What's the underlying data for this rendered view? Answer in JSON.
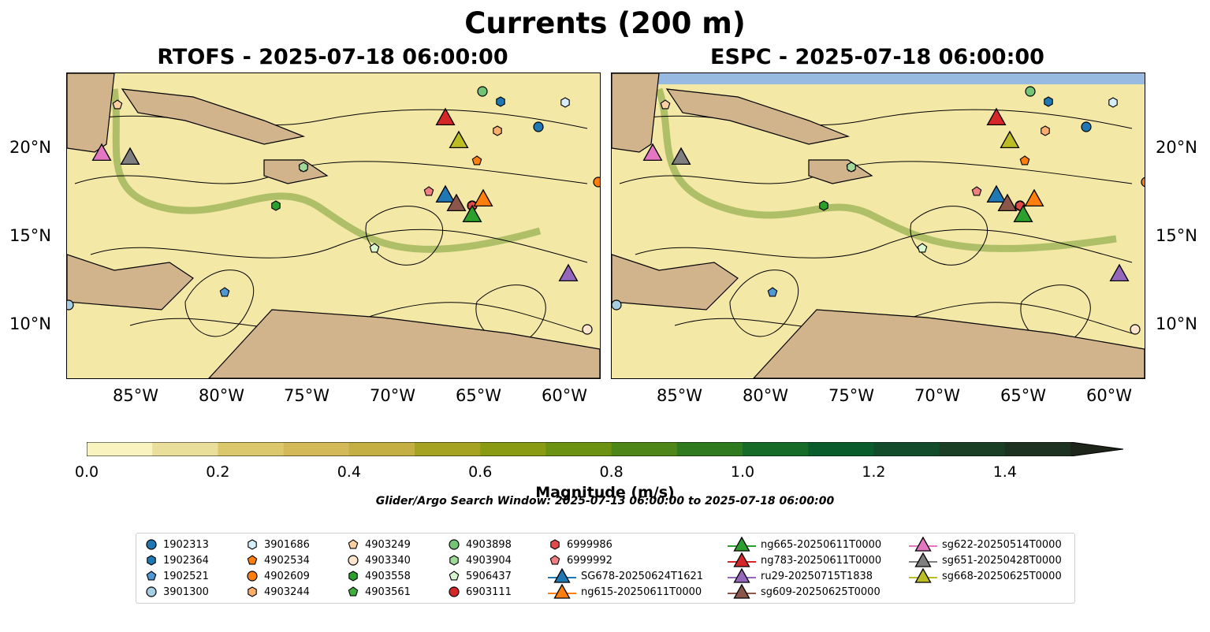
{
  "title": "Currents (200 m)",
  "panels": [
    {
      "title": "RTOFS - 2025-07-18 06:00:00"
    },
    {
      "title": "ESPC - 2025-07-18 06:00:00"
    }
  ],
  "axes": {
    "lon_ticks": [
      "85°W",
      "80°W",
      "75°W",
      "70°W",
      "65°W",
      "60°W"
    ],
    "lat_ticks": [
      "20°N",
      "15°N",
      "10°N"
    ]
  },
  "colorbar": {
    "label": "Magnitude (m/s)",
    "ticks": [
      "0.0",
      "0.2",
      "0.4",
      "0.6",
      "0.8",
      "1.0",
      "1.2",
      "1.4"
    ],
    "range": [
      0,
      1.5
    ],
    "colors": [
      "#f8f3bf",
      "#eadf9a",
      "#dcc86c",
      "#d3b957",
      "#c3af43",
      "#a5a321",
      "#889b12",
      "#6b9211",
      "#4f8618",
      "#2f7a1f",
      "#166b28",
      "#0b5c2c",
      "#124c2b",
      "#1a3f25",
      "#1e3221",
      "#1d241a"
    ]
  },
  "search_window": "Glider/Argo Search Window: 2025-07-13 06:00:00 to 2025-07-18 06:00:00",
  "map_colors": {
    "land": "#d2b48c",
    "ocean_shallow": "#98b9e0",
    "low_speed": "#f3e8a6",
    "high_speed": "#5a8f1a"
  },
  "legend": [
    {
      "label": "1902313",
      "marker": "circle",
      "color": "#1f77b4"
    },
    {
      "label": "1902364",
      "marker": "hexagon",
      "color": "#1f77b4"
    },
    {
      "label": "1902521",
      "marker": "pentagon",
      "color": "#4f98d4"
    },
    {
      "label": "3901300",
      "marker": "circle",
      "color": "#a6cee3"
    },
    {
      "label": "3901686",
      "marker": "hexagon",
      "color": "#d6eefa"
    },
    {
      "label": "4902534",
      "marker": "pentagon",
      "color": "#ff7f0e"
    },
    {
      "label": "4902609",
      "marker": "circle",
      "color": "#ff7f0e"
    },
    {
      "label": "4903244",
      "marker": "hexagon",
      "color": "#fdae6b"
    },
    {
      "label": "4903249",
      "marker": "pentagon",
      "color": "#fdd0a2"
    },
    {
      "label": "4903340",
      "marker": "circle",
      "color": "#fee6ce"
    },
    {
      "label": "4903558",
      "marker": "hexagon",
      "color": "#2ca02c"
    },
    {
      "label": "4903561",
      "marker": "pentagon",
      "color": "#3fae3f"
    },
    {
      "label": "4903898",
      "marker": "circle",
      "color": "#74c476"
    },
    {
      "label": "4903904",
      "marker": "hexagon",
      "color": "#a1d99b"
    },
    {
      "label": "5906437",
      "marker": "pentagon",
      "color": "#d9f7d0"
    },
    {
      "label": "6903111",
      "marker": "circle",
      "color": "#d62728"
    },
    {
      "label": "6999986",
      "marker": "hexagon",
      "color": "#e34a4b"
    },
    {
      "label": "6999992",
      "marker": "pentagon",
      "color": "#f07f80"
    },
    {
      "label": "SG678-20250624T1621",
      "marker": "triangle",
      "color": "#1f77b4"
    },
    {
      "label": "ng615-20250611T0000",
      "marker": "triangle",
      "color": "#ff7f0e"
    },
    {
      "label": "ng665-20250611T0000",
      "marker": "triangle",
      "color": "#2ca02c"
    },
    {
      "label": "ng783-20250611T0000",
      "marker": "triangle",
      "color": "#d62728"
    },
    {
      "label": "ru29-20250715T1838",
      "marker": "triangle",
      "color": "#9467bd"
    },
    {
      "label": "sg609-20250625T0000",
      "marker": "triangle",
      "color": "#8c564b"
    },
    {
      "label": "sg622-20250514T0000",
      "marker": "triangle",
      "color": "#e377c2"
    },
    {
      "label": "sg651-20250428T0000",
      "marker": "triangle",
      "color": "#7f7f7f"
    },
    {
      "label": "sg668-20250625T0000",
      "marker": "triangle",
      "color": "#bcbd22"
    }
  ]
}
